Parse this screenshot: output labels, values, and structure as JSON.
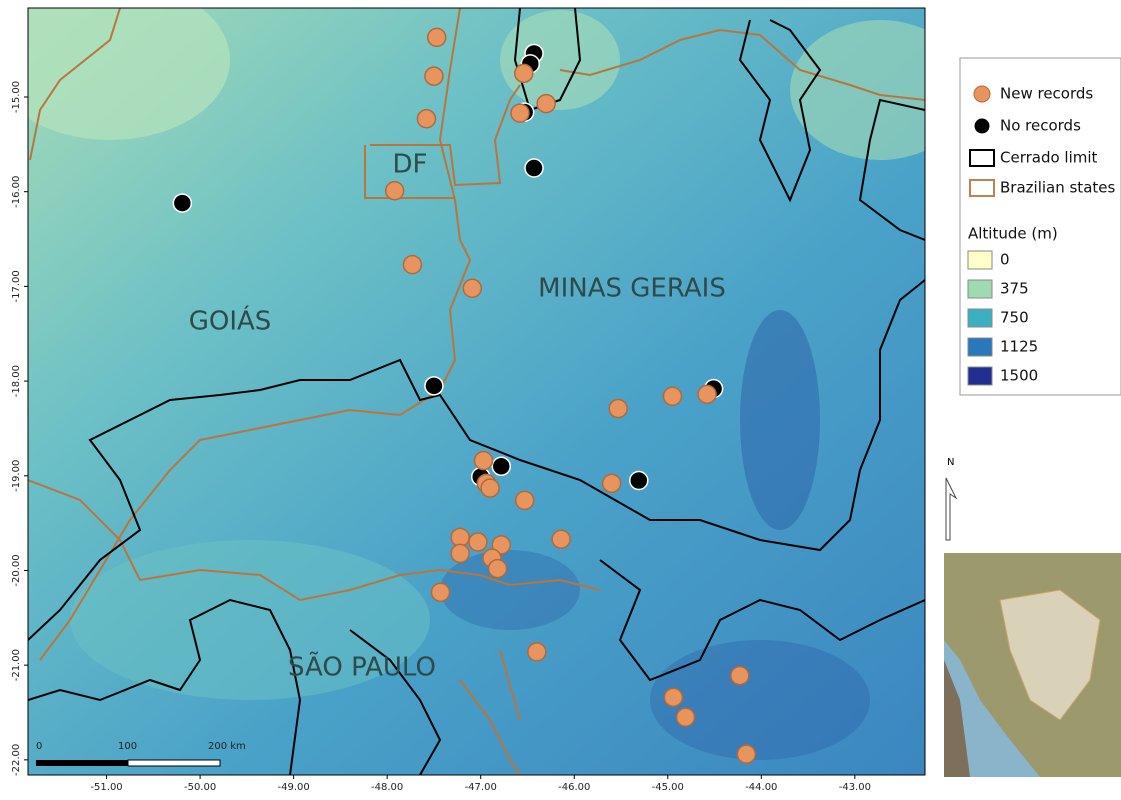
{
  "map": {
    "xlim": [
      -51.84,
      -42.25
    ],
    "ylim": [
      -22.16,
      -14.06
    ],
    "xticks": [
      {
        "value": -51,
        "label": "-51.00"
      },
      {
        "value": -50,
        "label": "-50.00"
      },
      {
        "value": -49,
        "label": "-49.00"
      },
      {
        "value": -48,
        "label": "-48.00"
      },
      {
        "value": -47,
        "label": "-47.00"
      },
      {
        "value": -46,
        "label": "-46.00"
      },
      {
        "value": -45,
        "label": "-45.00"
      },
      {
        "value": -44,
        "label": "-44.00"
      },
      {
        "value": -43,
        "label": "-43.00"
      }
    ],
    "yticks": [
      {
        "value": -15,
        "label": "-15.00"
      },
      {
        "value": -16,
        "label": "-16.00"
      },
      {
        "value": -17,
        "label": "-17.00"
      },
      {
        "value": -18,
        "label": "-18.00"
      },
      {
        "value": -19,
        "label": "-19.00"
      },
      {
        "value": -20,
        "label": "-20.00"
      },
      {
        "value": -21,
        "label": "-21.00"
      },
      {
        "value": -22,
        "label": "-22.00"
      }
    ],
    "region_labels": [
      "DF",
      "GOIÁS",
      "MINAS GERAIS",
      "SÃO PAULO"
    ],
    "series": [
      {
        "name": "No records",
        "color": "#000000",
        "lon": [
          -46.43,
          -46.47,
          -46.53,
          -46.43,
          -50.19,
          -47.5,
          -44.51,
          -46.78,
          -47.0,
          -45.31
        ],
        "lat": [
          -14.54,
          -14.65,
          -15.16,
          -15.75,
          -16.12,
          -18.05,
          -18.08,
          -18.9,
          -19.01,
          -19.05
        ]
      },
      {
        "name": "New records",
        "color": "#e8945f",
        "lon": [
          -47.47,
          -47.5,
          -47.58,
          -47.92,
          -47.73,
          -47.09,
          -46.54,
          -46.58,
          -46.3,
          -45.53,
          -44.95,
          -44.58,
          -45.6,
          -46.97,
          -46.94,
          -46.9,
          -46.53,
          -47.22,
          -47.22,
          -47.03,
          -46.78,
          -46.88,
          -46.82,
          -46.14,
          -47.43,
          -46.4,
          -44.94,
          -44.81,
          -44.23,
          -44.16
        ],
        "lat": [
          -14.37,
          -14.78,
          -15.23,
          -15.99,
          -16.77,
          -17.02,
          -14.75,
          -15.17,
          -15.07,
          -18.29,
          -18.16,
          -18.14,
          -19.08,
          -18.84,
          -19.08,
          -19.13,
          -19.26,
          -19.65,
          -19.82,
          -19.7,
          -19.73,
          -19.87,
          -19.98,
          -19.67,
          -20.23,
          -20.86,
          -21.34,
          -21.55,
          -21.11,
          -21.94
        ]
      }
    ],
    "legend_lines": [
      {
        "name": "Cerrado limit",
        "color": "#000000"
      },
      {
        "name": "Brazilian states",
        "color": "#c08050"
      }
    ],
    "altitude_title": "Altitude (m)",
    "altitude": [
      {
        "value": 0,
        "color": "#ffffc8"
      },
      {
        "value": 375,
        "color": "#a0dab0"
      },
      {
        "value": 750,
        "color": "#3bb0c0"
      },
      {
        "value": 1125,
        "color": "#2a78bc"
      },
      {
        "value": 1500,
        "color": "#232f90"
      }
    ],
    "scale_bar": [
      "0",
      "100",
      "200 km"
    ],
    "north": "N"
  }
}
